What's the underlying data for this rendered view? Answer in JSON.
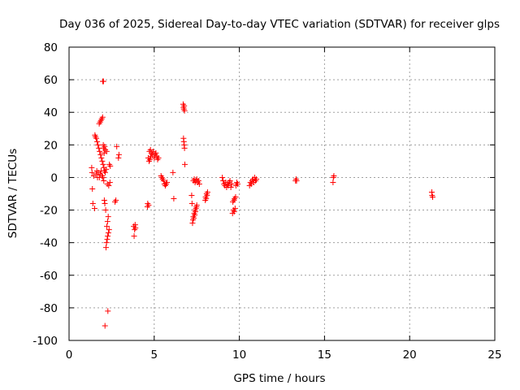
{
  "chart_data": {
    "type": "scatter",
    "title": "Day 036 of 2025, Sidereal Day-to-day VTEC variation (SDTVAR) for receiver glps",
    "xlabel": "GPS time / hours",
    "ylabel": "SDTVAR / TECUs",
    "xlim": [
      0,
      25
    ],
    "ylim": [
      -100,
      80
    ],
    "xticks": [
      "0",
      "5",
      "10",
      "15",
      "20",
      "25"
    ],
    "yticks": [
      "-100",
      "-80",
      "-60",
      "-40",
      "-20",
      "0",
      "20",
      "40",
      "60",
      "80"
    ],
    "grid": true,
    "marker": "plus",
    "colors": {
      "points": "#ff0000",
      "grid": "#a0a0a0",
      "axes": "#000000"
    },
    "series": [
      {
        "name": "SDTVAR",
        "points": [
          [
            1.33,
            6
          ],
          [
            1.35,
            3
          ],
          [
            1.37,
            -7
          ],
          [
            1.4,
            -16
          ],
          [
            1.45,
            1
          ],
          [
            1.5,
            -19
          ],
          [
            1.52,
            26
          ],
          [
            1.55,
            25
          ],
          [
            1.58,
            2
          ],
          [
            1.6,
            24
          ],
          [
            1.63,
            4
          ],
          [
            1.65,
            22
          ],
          [
            1.67,
            0
          ],
          [
            1.7,
            20
          ],
          [
            1.72,
            3
          ],
          [
            1.75,
            18
          ],
          [
            1.77,
            33
          ],
          [
            1.78,
            0
          ],
          [
            1.8,
            16
          ],
          [
            1.82,
            34
          ],
          [
            1.83,
            2
          ],
          [
            1.85,
            14
          ],
          [
            1.87,
            35
          ],
          [
            1.88,
            4
          ],
          [
            1.9,
            12
          ],
          [
            1.92,
            36
          ],
          [
            1.93,
            1
          ],
          [
            1.95,
            10
          ],
          [
            1.97,
            37
          ],
          [
            1.98,
            59
          ],
          [
            1.99,
            0
          ],
          [
            2.0,
            8
          ],
          [
            2.01,
            20
          ],
          [
            2.02,
            59
          ],
          [
            2.03,
            18
          ],
          [
            2.04,
            -2
          ],
          [
            2.05,
            6
          ],
          [
            2.06,
            15
          ],
          [
            2.07,
            -14
          ],
          [
            2.08,
            4
          ],
          [
            2.09,
            19
          ],
          [
            2.1,
            -16
          ],
          [
            2.11,
            -91
          ],
          [
            2.12,
            3
          ],
          [
            2.13,
            17
          ],
          [
            2.15,
            -20
          ],
          [
            2.17,
            -43
          ],
          [
            2.18,
            5
          ],
          [
            2.2,
            -40
          ],
          [
            2.21,
            16
          ],
          [
            2.22,
            -30
          ],
          [
            2.24,
            -38
          ],
          [
            2.25,
            -4
          ],
          [
            2.26,
            -27
          ],
          [
            2.27,
            -36
          ],
          [
            2.28,
            -82
          ],
          [
            2.3,
            -24
          ],
          [
            2.31,
            -34
          ],
          [
            2.33,
            -5
          ],
          [
            2.35,
            -32
          ],
          [
            2.37,
            8
          ],
          [
            2.4,
            -3
          ],
          [
            2.42,
            7
          ],
          [
            2.7,
            -15
          ],
          [
            2.75,
            -14
          ],
          [
            2.8,
            19
          ],
          [
            2.9,
            12
          ],
          [
            2.93,
            14
          ],
          [
            3.8,
            -30
          ],
          [
            3.82,
            -36
          ],
          [
            3.85,
            -32
          ],
          [
            3.88,
            -29
          ],
          [
            3.9,
            -31
          ],
          [
            4.6,
            -18
          ],
          [
            4.62,
            -16
          ],
          [
            4.65,
            12
          ],
          [
            4.67,
            -17
          ],
          [
            4.7,
            10
          ],
          [
            4.72,
            16
          ],
          [
            4.75,
            11
          ],
          [
            4.78,
            17
          ],
          [
            4.8,
            13
          ],
          [
            4.85,
            15
          ],
          [
            4.9,
            14
          ],
          [
            4.95,
            16
          ],
          [
            5.0,
            12
          ],
          [
            5.05,
            14
          ],
          [
            5.1,
            15
          ],
          [
            5.15,
            13
          ],
          [
            5.2,
            11
          ],
          [
            5.25,
            12
          ],
          [
            5.4,
            1
          ],
          [
            5.45,
            0
          ],
          [
            5.5,
            -1
          ],
          [
            5.55,
            -2
          ],
          [
            5.6,
            -4
          ],
          [
            5.65,
            -5
          ],
          [
            5.7,
            -4
          ],
          [
            5.75,
            -3
          ],
          [
            6.1,
            3
          ],
          [
            6.15,
            -13
          ],
          [
            6.7,
            45
          ],
          [
            6.72,
            43
          ],
          [
            6.74,
            42
          ],
          [
            6.76,
            44
          ],
          [
            6.78,
            41
          ],
          [
            6.72,
            24
          ],
          [
            6.74,
            22
          ],
          [
            6.76,
            20
          ],
          [
            6.78,
            18
          ],
          [
            6.8,
            8
          ],
          [
            7.2,
            -11
          ],
          [
            7.22,
            -16
          ],
          [
            7.25,
            -28
          ],
          [
            7.28,
            -26
          ],
          [
            7.3,
            -24
          ],
          [
            7.32,
            -25
          ],
          [
            7.35,
            -22
          ],
          [
            7.38,
            -23
          ],
          [
            7.4,
            -20
          ],
          [
            7.42,
            -21
          ],
          [
            7.45,
            -19
          ],
          [
            7.48,
            -18
          ],
          [
            7.5,
            -17
          ],
          [
            7.3,
            -2
          ],
          [
            7.35,
            -1
          ],
          [
            7.4,
            -3
          ],
          [
            7.45,
            -2
          ],
          [
            7.5,
            -1
          ],
          [
            7.55,
            -3
          ],
          [
            7.6,
            -2
          ],
          [
            7.65,
            -4
          ],
          [
            8.0,
            -14
          ],
          [
            8.02,
            -12
          ],
          [
            8.05,
            -13
          ],
          [
            8.08,
            -10
          ],
          [
            8.1,
            -11
          ],
          [
            8.13,
            -9
          ],
          [
            9.0,
            0
          ],
          [
            9.05,
            -2
          ],
          [
            9.1,
            -4
          ],
          [
            9.15,
            -5
          ],
          [
            9.2,
            -3
          ],
          [
            9.25,
            -6
          ],
          [
            9.3,
            -4
          ],
          [
            9.35,
            -5
          ],
          [
            9.4,
            -3
          ],
          [
            9.45,
            -2
          ],
          [
            9.5,
            -6
          ],
          [
            9.55,
            -4
          ],
          [
            9.6,
            -22
          ],
          [
            9.62,
            -15
          ],
          [
            9.65,
            -20
          ],
          [
            9.68,
            -14
          ],
          [
            9.7,
            -21
          ],
          [
            9.72,
            -13
          ],
          [
            9.75,
            -19
          ],
          [
            9.78,
            -12
          ],
          [
            9.8,
            -5
          ],
          [
            9.85,
            -3
          ],
          [
            9.9,
            -4
          ],
          [
            10.6,
            -5
          ],
          [
            10.65,
            -3
          ],
          [
            10.7,
            -4
          ],
          [
            10.75,
            -2
          ],
          [
            10.8,
            -1
          ],
          [
            10.85,
            -3
          ],
          [
            10.9,
            0
          ],
          [
            10.95,
            -2
          ],
          [
            11.0,
            -1
          ],
          [
            13.3,
            -2
          ],
          [
            13.33,
            -1
          ],
          [
            13.36,
            -2
          ],
          [
            15.5,
            -3
          ],
          [
            15.52,
            0
          ],
          [
            15.55,
            1
          ],
          [
            21.3,
            -9
          ],
          [
            21.32,
            -11
          ],
          [
            21.35,
            -12
          ]
        ]
      }
    ]
  }
}
